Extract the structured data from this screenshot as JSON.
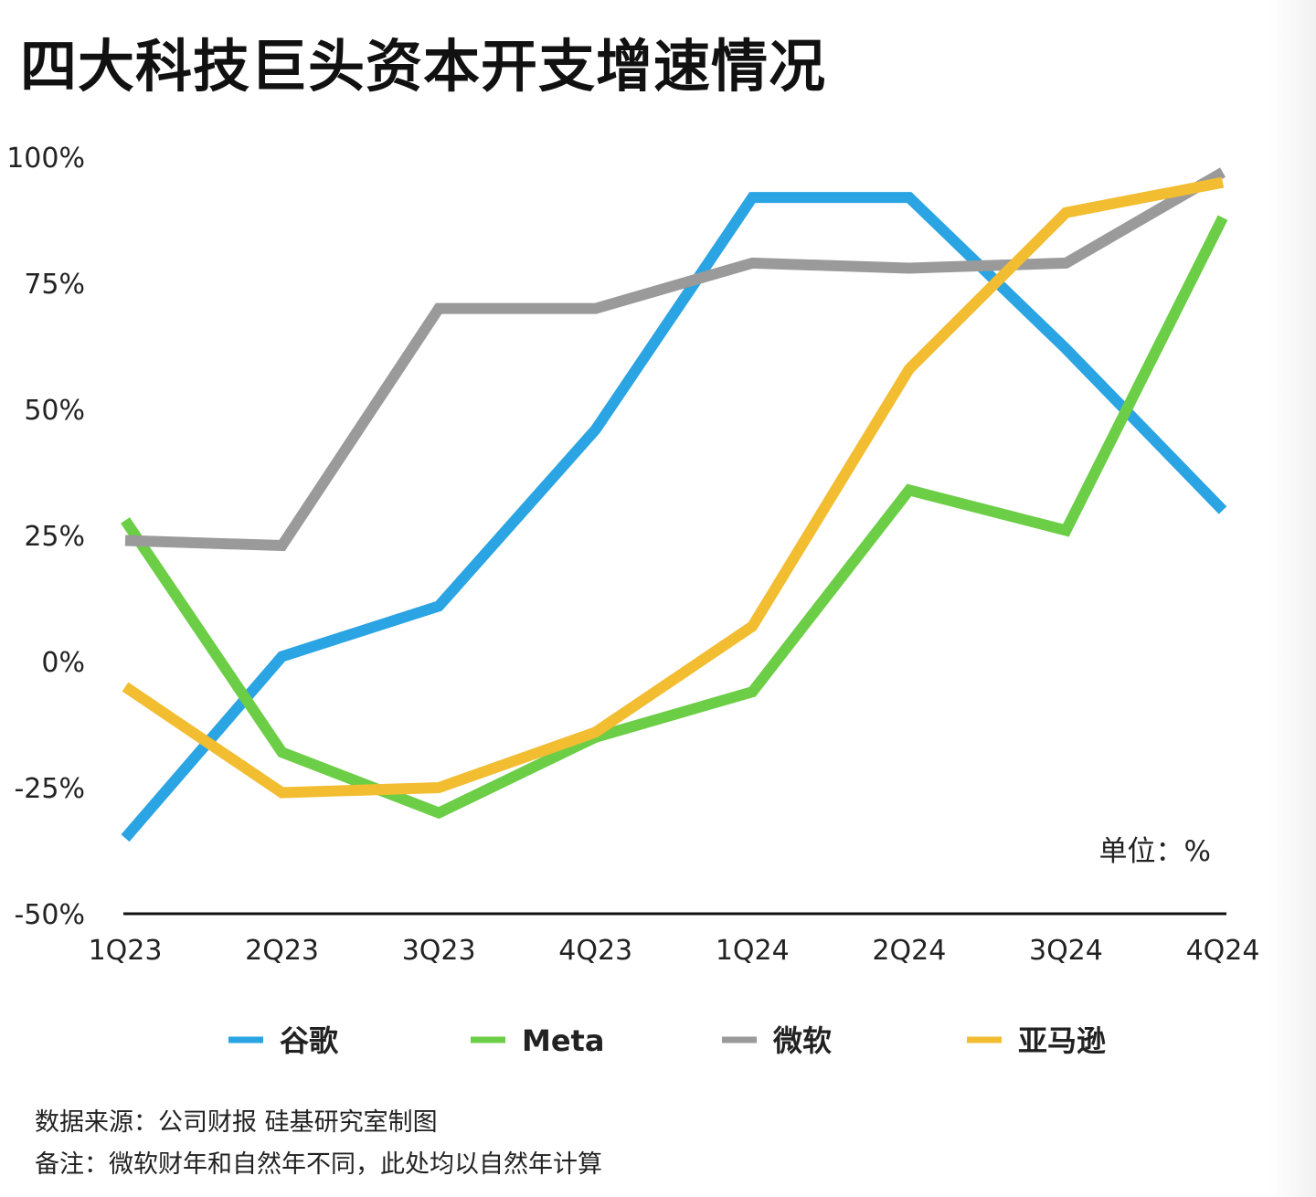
{
  "chart_data": {
    "type": "line",
    "title": "四大科技巨头资本开支增速情况",
    "categories": [
      "1Q23",
      "2Q23",
      "3Q23",
      "4Q23",
      "1Q24",
      "2Q24",
      "3Q24",
      "4Q24"
    ],
    "ylim": [
      -50,
      100
    ],
    "yticks": [
      100,
      75,
      50,
      25,
      0,
      -25,
      -50
    ],
    "ytick_labels": [
      "100%",
      "75%",
      "50%",
      "25%",
      "0%",
      "-25%",
      "-50%"
    ],
    "grid": false,
    "legend_position": "bottom",
    "unit_label": "单位：%",
    "series": [
      {
        "name": "谷歌",
        "color": "#2aa4e3",
        "values": [
          -35,
          1,
          11,
          46,
          92,
          92,
          62,
          30
        ]
      },
      {
        "name": "Meta",
        "color": "#6cce46",
        "values": [
          28,
          -18,
          -30,
          -15,
          -6,
          34,
          26,
          88
        ]
      },
      {
        "name": "微软",
        "color": "#9a9a9a",
        "values": [
          24,
          23,
          70,
          70,
          79,
          78,
          79,
          97
        ]
      },
      {
        "name": "亚马逊",
        "color": "#f2bd30",
        "values": [
          -5,
          -26,
          -25,
          -14,
          7,
          58,
          89,
          95
        ]
      }
    ]
  },
  "footer": {
    "source": "数据来源：公司财报  硅基研究室制图",
    "note": "备注：微软财年和自然年不同，此处均以自然年计算"
  }
}
